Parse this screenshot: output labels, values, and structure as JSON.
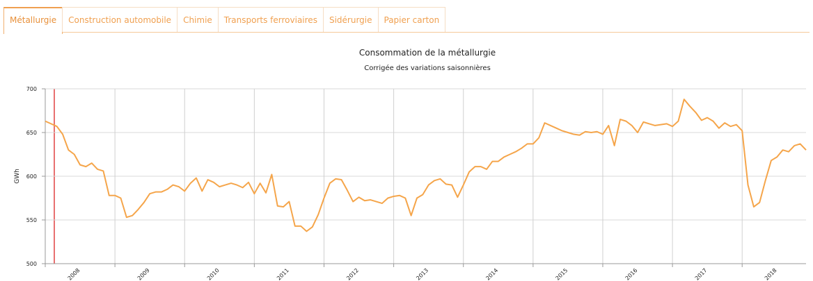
{
  "tabs": [
    "Métallurgie",
    "Construction automobile",
    "Chimie",
    "Transports ferroviaires",
    "Sidérurgie",
    "Papier carton"
  ],
  "active_tab": 0,
  "chart_data": {
    "type": "line",
    "title": "Consommation de la métallurgie",
    "subtitle": "Corrigée des variations saisonnières",
    "y_label": "GWh",
    "color": "#f5a54a",
    "values": [
      663,
      660,
      657,
      648,
      630,
      625,
      613,
      611,
      615,
      608,
      606,
      578,
      578,
      575,
      553,
      555,
      562,
      570,
      580,
      582,
      582,
      585,
      590,
      588,
      583,
      592,
      598,
      583,
      596,
      593,
      588,
      590,
      592,
      590,
      587,
      593,
      580,
      592,
      581,
      602,
      566,
      565,
      571,
      543,
      543,
      537,
      542,
      556,
      575,
      592,
      597,
      596,
      584,
      571,
      576,
      572,
      573,
      571,
      569,
      575,
      577,
      578,
      575,
      555,
      575,
      579,
      590,
      595,
      597,
      591,
      590,
      576,
      590,
      605,
      611,
      611,
      608,
      617,
      617,
      622,
      625,
      628,
      632,
      637,
      637,
      644,
      661,
      658,
      655,
      652,
      650,
      648,
      647,
      651,
      650,
      651,
      648,
      658,
      635,
      665,
      663,
      658,
      650,
      662,
      660,
      658,
      659,
      660,
      657,
      663,
      688,
      680,
      673,
      664,
      667,
      663,
      655,
      661,
      657,
      659,
      652,
      590,
      565,
      570,
      595,
      618,
      622,
      630,
      628,
      635,
      637,
      630
    ],
    "xlim": [
      0,
      131
    ],
    "xticks": [
      {
        "value": 0,
        "label": "2008"
      },
      {
        "value": 12,
        "label": "2009"
      },
      {
        "value": 24,
        "label": "2010"
      },
      {
        "value": 36,
        "label": "2011"
      },
      {
        "value": 48,
        "label": "2012"
      },
      {
        "value": 60,
        "label": "2013"
      },
      {
        "value": 72,
        "label": "2014"
      },
      {
        "value": 84,
        "label": "2015"
      },
      {
        "value": 96,
        "label": "2016"
      },
      {
        "value": 108,
        "label": "2017"
      },
      {
        "value": 120,
        "label": "2018"
      }
    ],
    "ylim": [
      500,
      700
    ],
    "yticks": [
      500,
      550,
      600,
      650,
      700
    ],
    "grid": true
  }
}
